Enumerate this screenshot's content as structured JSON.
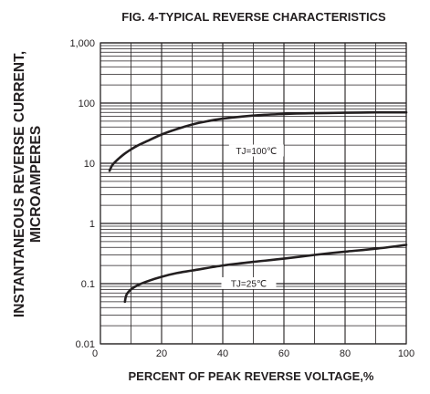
{
  "chart_data": {
    "type": "line",
    "title": "FIG. 4-TYPICAL REVERSE CHARACTERISTICS",
    "xlabel": "PERCENT OF PEAK REVERSE VOLTAGE,%",
    "ylabel_line1": "INSTANTANEOUS REVERSE CURRENT,",
    "ylabel_line2": "MICROAMPERES",
    "xlim": [
      0,
      100
    ],
    "ylim": [
      0.01,
      1000
    ],
    "yscale": "log",
    "grid": true,
    "xticks": [
      "0",
      "20",
      "40",
      "60",
      "80",
      "100"
    ],
    "yticks": [
      "0.01",
      "0.1",
      "1",
      "10",
      "100",
      "1,000"
    ],
    "series": [
      {
        "name": "TJ=100℃",
        "x": [
          3,
          4,
          6,
          8,
          10,
          12,
          15,
          20,
          25,
          30,
          35,
          40,
          50,
          60,
          70,
          80,
          90,
          100
        ],
        "y": [
          7.5,
          9.5,
          12,
          14.5,
          17,
          19.5,
          23,
          30,
          37,
          44,
          50,
          55,
          62,
          66,
          68,
          69,
          70,
          70
        ]
      },
      {
        "name": "TJ=25℃",
        "x": [
          8,
          8.5,
          10,
          12,
          15,
          20,
          25,
          30,
          40,
          50,
          60,
          70,
          80,
          90,
          100
        ],
        "y": [
          0.05,
          0.065,
          0.08,
          0.093,
          0.108,
          0.13,
          0.15,
          0.165,
          0.2,
          0.23,
          0.26,
          0.3,
          0.34,
          0.38,
          0.44
        ]
      }
    ]
  }
}
